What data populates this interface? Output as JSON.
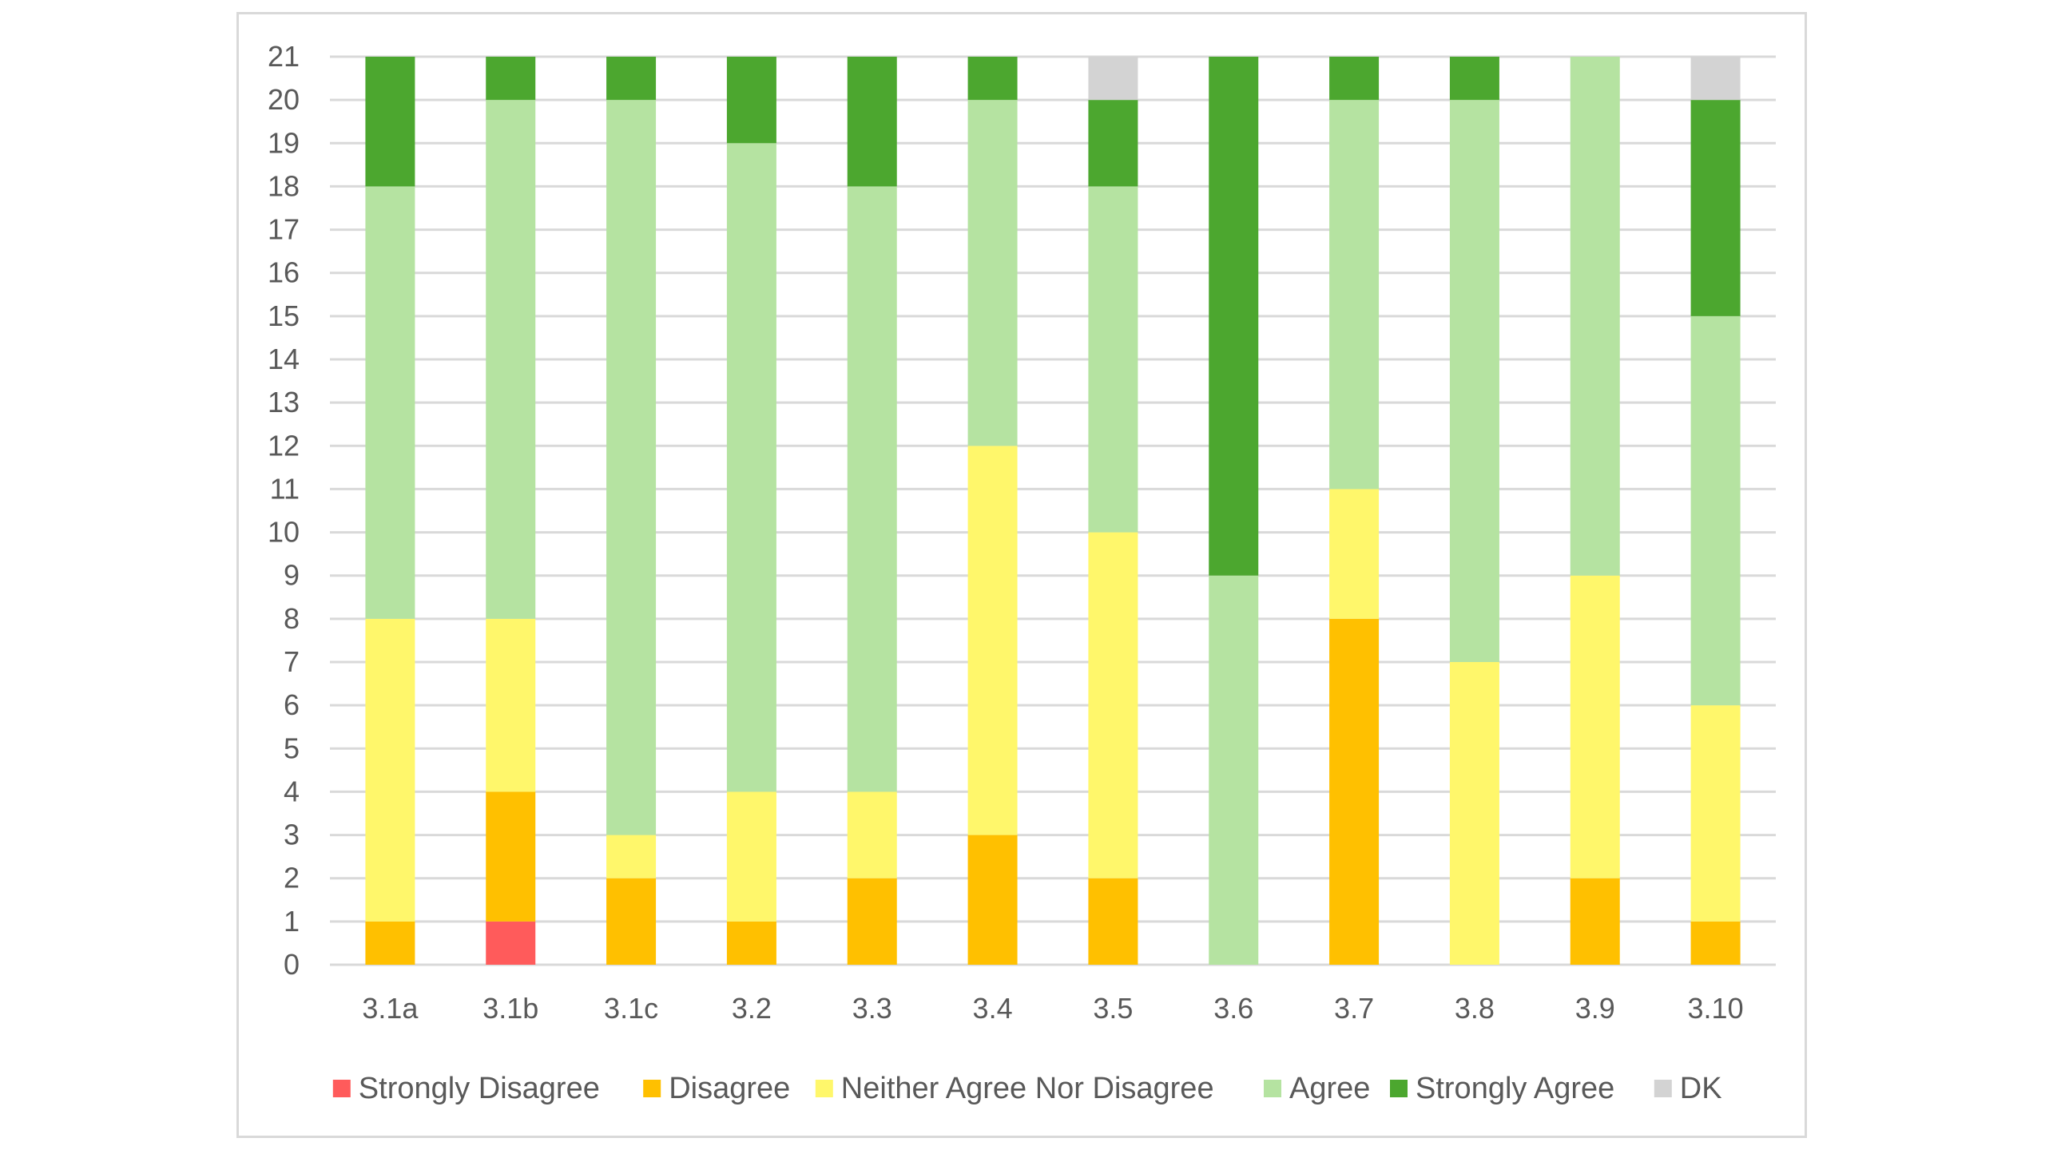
{
  "chart_data": {
    "type": "bar",
    "stacked": true,
    "categories": [
      "3.1a",
      "3.1b",
      "3.1c",
      "3.2",
      "3.3",
      "3.4",
      "3.5",
      "3.6",
      "3.7",
      "3.8",
      "3.9",
      "3.10"
    ],
    "series": [
      {
        "name": "Strongly Disagree",
        "color": "#ff5b5b",
        "values": [
          0,
          1,
          0,
          0,
          0,
          0,
          0,
          0,
          0,
          0,
          0,
          0
        ]
      },
      {
        "name": "Disagree",
        "color": "#ffc000",
        "values": [
          1,
          3,
          2,
          1,
          2,
          3,
          2,
          0,
          8,
          0,
          2,
          1
        ]
      },
      {
        "name": "Neither Agree Nor Disagree",
        "color": "#fff76b",
        "values": [
          7,
          4,
          1,
          3,
          2,
          9,
          8,
          0,
          3,
          7,
          7,
          5
        ]
      },
      {
        "name": "Agree",
        "color": "#b5e3a1",
        "values": [
          10,
          12,
          17,
          15,
          14,
          8,
          8,
          9,
          9,
          13,
          12,
          9
        ]
      },
      {
        "name": "Strongly Agree",
        "color": "#4ca72f",
        "values": [
          3,
          1,
          1,
          2,
          3,
          1,
          2,
          12,
          1,
          1,
          0,
          5
        ]
      },
      {
        "name": "DK",
        "color": "#d3d3d3",
        "values": [
          0,
          0,
          0,
          0,
          0,
          0,
          1,
          0,
          0,
          0,
          0,
          1
        ]
      }
    ],
    "yticks": [
      "0",
      "1",
      "2",
      "3",
      "4",
      "5",
      "6",
      "7",
      "8",
      "9",
      "10",
      "11",
      "12",
      "13",
      "14",
      "15",
      "16",
      "17",
      "18",
      "19",
      "20",
      "21"
    ],
    "ylim": [
      0,
      21
    ],
    "grid": true,
    "legend_position": "bottom",
    "title": "",
    "xlabel": "",
    "ylabel": ""
  }
}
